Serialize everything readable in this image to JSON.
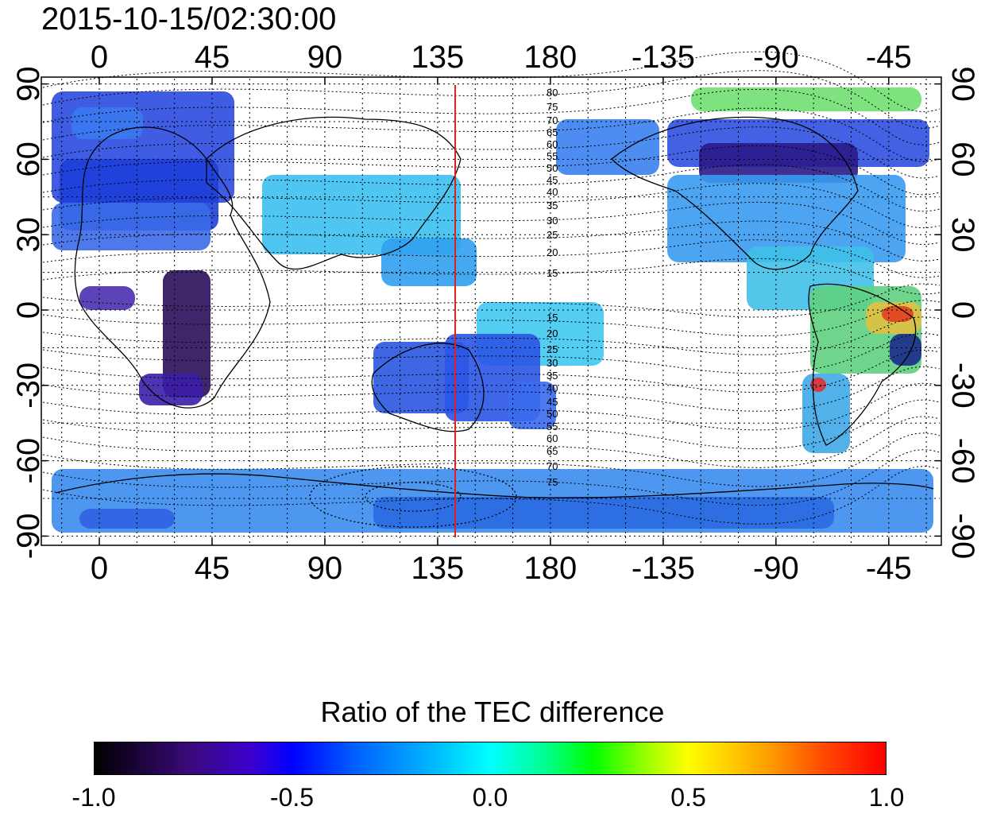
{
  "title": "2015-10-15/02:30:00",
  "map": {
    "lon_ticks": [
      {
        "lon": 0,
        "label": "0"
      },
      {
        "lon": 45,
        "label": "45"
      },
      {
        "lon": 90,
        "label": "90"
      },
      {
        "lon": 135,
        "label": "135"
      },
      {
        "lon": 180,
        "label": "180"
      },
      {
        "lon": 225,
        "label": "-135"
      },
      {
        "lon": 270,
        "label": "-90"
      },
      {
        "lon": 315,
        "label": "-45"
      }
    ],
    "lat_ticks": [
      {
        "lat": 90,
        "label": "90"
      },
      {
        "lat": 60,
        "label": "60"
      },
      {
        "lat": 30,
        "label": "30"
      },
      {
        "lat": 0,
        "label": "0"
      },
      {
        "lat": -30,
        "label": "-30"
      },
      {
        "lat": -60,
        "label": "-60"
      },
      {
        "lat": -90,
        "label": "-90"
      }
    ],
    "meridian_line": {
      "lon": 142,
      "color": "#e02020"
    },
    "contour_labels_north": [
      "80",
      "75",
      "70",
      "65",
      "60",
      "55",
      "50",
      "45",
      "40",
      "35",
      "30",
      "25",
      "20",
      "15"
    ],
    "contour_labels_south": [
      "15",
      "20",
      "25",
      "30",
      "35",
      "40",
      "45",
      "50",
      "55",
      "60",
      "65",
      "70",
      "75"
    ]
  },
  "colorbar": {
    "title": "Ratio of the TEC difference",
    "min": -1.0,
    "max": 1.0,
    "tick_labels": [
      {
        "value": -1.0,
        "label": "-1.0"
      },
      {
        "value": -0.5,
        "label": "-0.5"
      },
      {
        "value": 0.0,
        "label": "0.0"
      },
      {
        "value": 0.5,
        "label": "0.5"
      },
      {
        "value": 1.0,
        "label": "1.0"
      }
    ],
    "colors": [
      "#000000",
      "#3a0a7a",
      "#0000ff",
      "#00b0ff",
      "#00ffff",
      "#00ff00",
      "#ffff00",
      "#ff4000",
      "#ff0000"
    ]
  }
}
